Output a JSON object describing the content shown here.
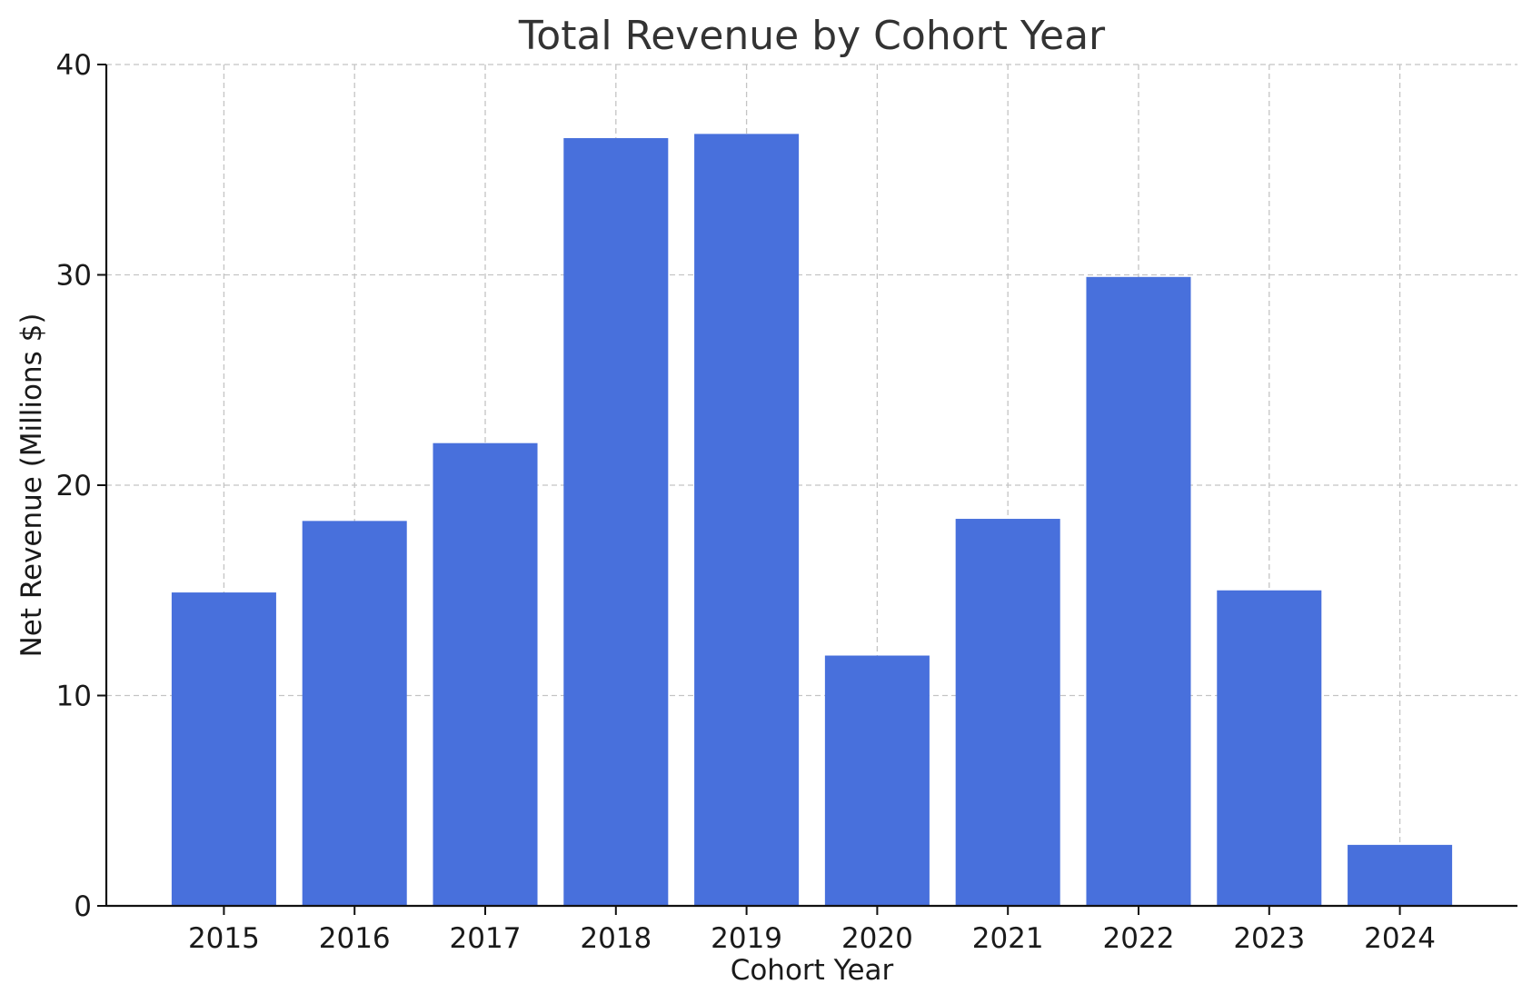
{
  "chart_data": {
    "type": "bar",
    "title": "Total Revenue by Cohort Year",
    "xlabel": "Cohort Year",
    "ylabel": "Net Revenue (Millions $)",
    "categories": [
      "2015",
      "2016",
      "2017",
      "2018",
      "2019",
      "2020",
      "2021",
      "2022",
      "2023",
      "2024"
    ],
    "values": [
      14.9,
      18.3,
      22.0,
      36.5,
      36.7,
      11.9,
      18.4,
      29.9,
      15.0,
      2.9
    ],
    "ylim": [
      0,
      40
    ],
    "yticks": [
      0,
      10,
      20,
      30,
      40
    ],
    "grid": true,
    "bar_color": "#4870dc"
  }
}
